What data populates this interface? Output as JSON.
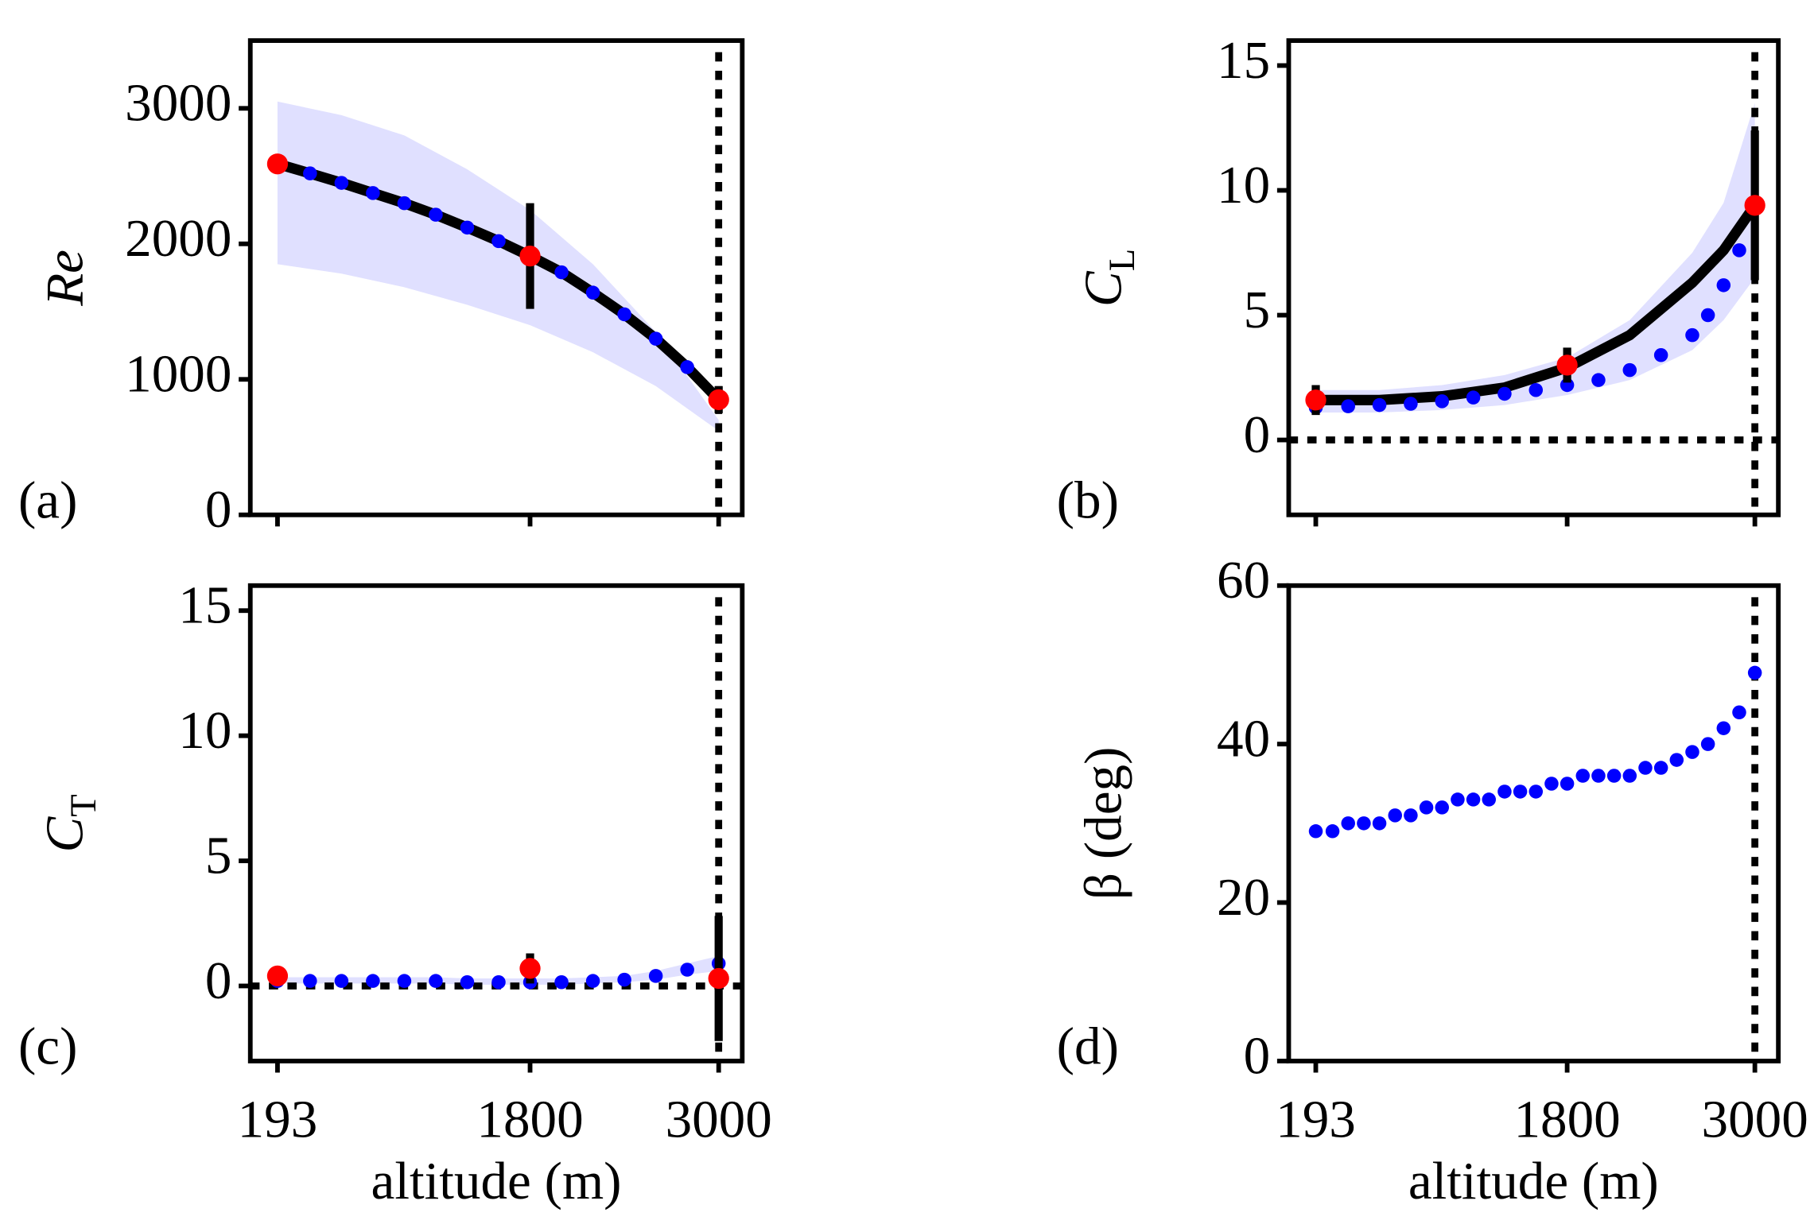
{
  "chart_data": [
    {
      "type": "scatter",
      "label": "(a)",
      "ylabel": "Re",
      "xlim": [
        20,
        3150
      ],
      "ylim": [
        0,
        3500
      ],
      "xticks": [
        193,
        1800,
        3000
      ],
      "yticks": [
        0,
        1000,
        2000,
        3000
      ],
      "vline": 3000,
      "band": {
        "color": "#e0e0ff",
        "x": [
          193,
          600,
          1000,
          1400,
          1800,
          2200,
          2600,
          3000
        ],
        "upper": [
          3050,
          2950,
          2800,
          2550,
          2250,
          1850,
          1350,
          700
        ],
        "lower": [
          1850,
          1780,
          1680,
          1550,
          1400,
          1200,
          950,
          620
        ]
      },
      "dots": {
        "color": "#0000ff",
        "x": [
          193,
          400,
          600,
          800,
          1000,
          1200,
          1400,
          1600,
          1800,
          2000,
          2200,
          2400,
          2600,
          2800,
          3000
        ],
        "values": [
          2590,
          2520,
          2450,
          2375,
          2300,
          2215,
          2120,
          2020,
          1910,
          1790,
          1640,
          1480,
          1300,
          1090,
          850
        ]
      },
      "curve": {
        "color": "#000000",
        "x": [
          193,
          400,
          600,
          800,
          1000,
          1200,
          1400,
          1600,
          1800,
          2000,
          2200,
          2400,
          2600,
          2800,
          3000
        ],
        "values": [
          2590,
          2520,
          2450,
          2375,
          2300,
          2215,
          2120,
          2020,
          1910,
          1790,
          1640,
          1480,
          1300,
          1090,
          850
        ]
      },
      "points": {
        "color": "#ff0000",
        "x": [
          193,
          1800,
          3000
        ],
        "values": [
          2590,
          1910,
          850
        ],
        "errors": [
          60,
          390,
          100
        ]
      }
    },
    {
      "type": "scatter",
      "label": "(b)",
      "ylabel": "C",
      "ylabel_sub": "L",
      "xlim": [
        20,
        3150
      ],
      "ylim": [
        -3,
        16
      ],
      "xticks": [
        193,
        1800,
        3000
      ],
      "yticks": [
        0,
        5,
        10,
        15
      ],
      "vline": 3000,
      "hline": 0,
      "band": {
        "color": "#e0e0ff",
        "x": [
          193,
          600,
          1000,
          1400,
          1800,
          2200,
          2600,
          2800,
          3000
        ],
        "upper": [
          2.0,
          2.0,
          2.2,
          2.6,
          3.3,
          4.8,
          7.5,
          9.5,
          13.5
        ],
        "lower": [
          1.1,
          1.1,
          1.2,
          1.4,
          1.8,
          2.4,
          3.6,
          4.8,
          6.5
        ]
      },
      "dots": {
        "color": "#0000ff",
        "x": [
          193,
          400,
          600,
          800,
          1000,
          1200,
          1400,
          1600,
          1800,
          2000,
          2200,
          2400,
          2600,
          2700,
          2800,
          2900
        ],
        "values": [
          1.3,
          1.35,
          1.4,
          1.45,
          1.55,
          1.7,
          1.85,
          2.0,
          2.2,
          2.4,
          2.8,
          3.4,
          4.2,
          5.0,
          6.2,
          7.6
        ]
      },
      "curve": {
        "color": "#000000",
        "x": [
          193,
          600,
          1000,
          1400,
          1800,
          2200,
          2600,
          2800,
          3000
        ],
        "values": [
          1.6,
          1.6,
          1.75,
          2.1,
          2.9,
          4.2,
          6.3,
          7.6,
          9.4
        ]
      },
      "points": {
        "color": "#ff0000",
        "x": [
          193,
          1800,
          3000
        ],
        "values": [
          1.6,
          3.0,
          9.4
        ],
        "errors": [
          0.6,
          0.7,
          3.0
        ]
      }
    },
    {
      "type": "scatter",
      "label": "(c)",
      "ylabel": "C",
      "ylabel_sub": "T",
      "xlabel": "altitude (m)",
      "xlim": [
        20,
        3150
      ],
      "ylim": [
        -3,
        16
      ],
      "xticks": [
        193,
        1800,
        3000
      ],
      "yticks": [
        0,
        5,
        10,
        15
      ],
      "vline": 3000,
      "hline": 0,
      "band": {
        "color": "#e0e0ff",
        "x": [
          193,
          400,
          600,
          800,
          1000,
          1200,
          1400,
          1600,
          1800,
          2000,
          2200,
          2400,
          2600,
          2800,
          3000
        ],
        "upper": [
          0.35,
          0.35,
          0.35,
          0.35,
          0.35,
          0.35,
          0.3,
          0.3,
          0.3,
          0.3,
          0.35,
          0.4,
          0.6,
          0.9,
          1.2
        ],
        "lower": [
          0.1,
          0.1,
          0.1,
          0.1,
          0.1,
          0.1,
          0.05,
          0.05,
          0.05,
          0.05,
          0.1,
          0.15,
          0.25,
          0.45,
          0.6
        ]
      },
      "dots": {
        "color": "#0000ff",
        "x": [
          193,
          400,
          600,
          800,
          1000,
          1200,
          1400,
          1600,
          1800,
          2000,
          2200,
          2400,
          2600,
          2800,
          3000
        ],
        "values": [
          0.2,
          0.2,
          0.2,
          0.2,
          0.2,
          0.2,
          0.15,
          0.15,
          0.15,
          0.15,
          0.2,
          0.25,
          0.4,
          0.65,
          0.9
        ]
      },
      "points": {
        "color": "#ff0000",
        "x": [
          193,
          1800,
          3000
        ],
        "values": [
          0.4,
          0.7,
          0.3
        ],
        "errors": [
          0.3,
          0.6,
          2.5
        ]
      }
    },
    {
      "type": "scatter",
      "label": "(d)",
      "ylabel": "β (deg)",
      "xlabel": "altitude (m)",
      "xlim": [
        20,
        3150
      ],
      "ylim": [
        0,
        60
      ],
      "xticks": [
        193,
        1800,
        3000
      ],
      "yticks": [
        0,
        20,
        40,
        60
      ],
      "vline": 3000,
      "dots": {
        "color": "#0000ff",
        "x": [
          193,
          300,
          400,
          500,
          600,
          700,
          800,
          900,
          1000,
          1100,
          1200,
          1300,
          1400,
          1500,
          1600,
          1700,
          1800,
          1900,
          2000,
          2100,
          2200,
          2300,
          2400,
          2500,
          2600,
          2700,
          2800,
          2900,
          3000
        ],
        "values": [
          29,
          29,
          30,
          30,
          30,
          31,
          31,
          32,
          32,
          33,
          33,
          33,
          34,
          34,
          34,
          35,
          35,
          36,
          36,
          36,
          36,
          37,
          37,
          38,
          39,
          40,
          42,
          44,
          49
        ]
      }
    }
  ]
}
